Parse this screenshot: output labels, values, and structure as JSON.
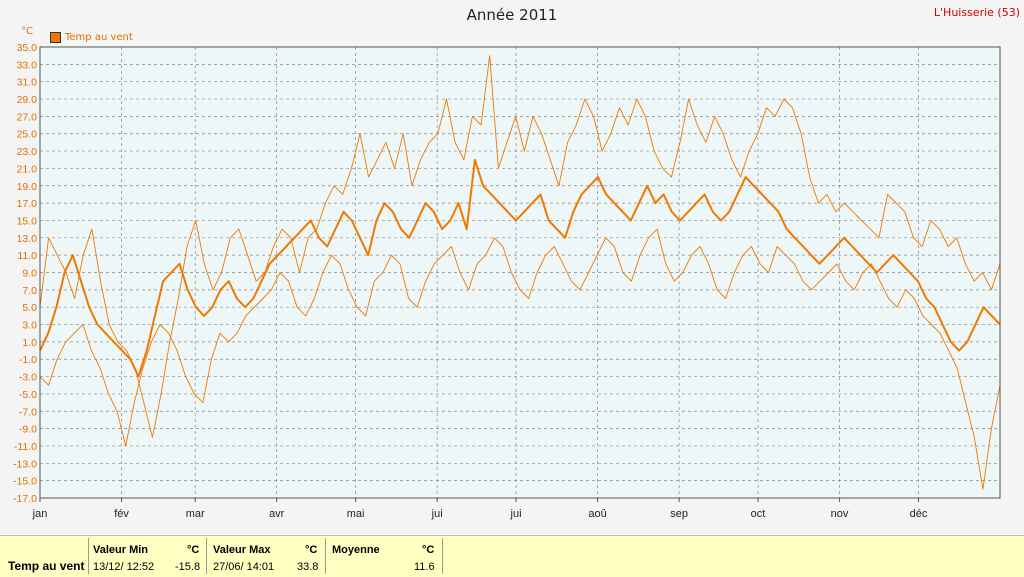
{
  "header": {
    "title": "Année 2011",
    "location": "L'Huisserie (53)",
    "unit": "°C",
    "legend_label": "Temp au vent"
  },
  "colors": {
    "series": "#f07800",
    "plot_bg": "#eef7f7",
    "grid": "#888888",
    "axis_label": "#e07000",
    "location": "#d00000",
    "summary_bg": "#ffffc2"
  },
  "summary": {
    "row_label": "Temp au vent",
    "min": {
      "label": "Valeur Min",
      "unit": "°C",
      "date": "13/12/ 12:52",
      "value": "-15.8"
    },
    "max": {
      "label": "Valeur Max",
      "unit": "°C",
      "date": "27/06/ 14:01",
      "value": "33.8"
    },
    "avg": {
      "label": "Moyenne",
      "unit": "°C",
      "value": "11.6"
    }
  },
  "chart_data": {
    "type": "line",
    "title": "Année 2011",
    "ylabel": "°C",
    "ylim": [
      -17,
      35
    ],
    "yticks": [
      "35.0",
      "33.0",
      "31.0",
      "29.0",
      "27.0",
      "25.0",
      "23.0",
      "21.0",
      "19.0",
      "17.0",
      "15.0",
      "13.0",
      "11.0",
      "9.0",
      "7.0",
      "5.0",
      "3.0",
      "1.0",
      "-1.0",
      "-3.0",
      "-5.0",
      "-7.0",
      "-9.0",
      "-11.0",
      "-13.0",
      "-15.0",
      "-17.0"
    ],
    "months": [
      "jan",
      "fév",
      "mar",
      "avr",
      "mai",
      "jui",
      "jui",
      "aoû",
      "sep",
      "oct",
      "nov",
      "déc"
    ],
    "month_days": [
      31,
      28,
      31,
      30,
      31,
      30,
      31,
      31,
      30,
      31,
      30,
      31
    ],
    "grid": true,
    "legend_position": "top-left",
    "series": [
      {
        "name": "Temp au vent",
        "role": "max",
        "values": [
          5,
          13,
          11,
          9,
          6,
          11,
          14,
          8,
          3,
          1,
          0,
          -2,
          -6,
          -10,
          -5,
          1,
          6,
          12,
          15,
          10,
          7,
          9,
          13,
          14,
          11,
          8,
          9,
          12,
          14,
          13,
          9,
          13,
          14,
          17,
          19,
          18,
          21,
          25,
          20,
          22,
          24,
          21,
          25,
          19,
          22,
          24,
          25,
          29,
          24,
          22,
          27,
          26,
          34,
          21,
          24,
          27,
          23,
          27,
          25,
          22,
          19,
          24,
          26,
          29,
          27,
          23,
          25,
          28,
          26,
          29,
          27,
          23,
          21,
          20,
          24,
          29,
          26,
          24,
          27,
          25,
          22,
          20,
          23,
          25,
          28,
          27,
          29,
          28,
          25,
          20,
          17,
          18,
          16,
          17,
          16,
          15,
          14,
          13,
          18,
          17,
          16,
          13,
          12,
          15,
          14,
          12,
          13,
          10,
          8,
          9,
          7,
          10
        ]
      },
      {
        "name": "Temp au vent",
        "role": "mean",
        "values": [
          0,
          2,
          5,
          9,
          11,
          8,
          5,
          3,
          2,
          1,
          0,
          -1,
          -3,
          0,
          4,
          8,
          9,
          10,
          7,
          5,
          4,
          5,
          7,
          8,
          6,
          5,
          6,
          8,
          10,
          11,
          12,
          13,
          14,
          15,
          13,
          12,
          14,
          16,
          15,
          13,
          11,
          15,
          17,
          16,
          14,
          13,
          15,
          17,
          16,
          14,
          15,
          17,
          14,
          22,
          19,
          18,
          17,
          16,
          15,
          16,
          17,
          18,
          15,
          14,
          13,
          16,
          18,
          19,
          20,
          18,
          17,
          16,
          15,
          17,
          19,
          17,
          18,
          16,
          15,
          16,
          17,
          18,
          16,
          15,
          16,
          18,
          20,
          19,
          18,
          17,
          16,
          14,
          13,
          12,
          11,
          10,
          11,
          12,
          13,
          12,
          11,
          10,
          9,
          10,
          11,
          10,
          9,
          8,
          6,
          5,
          3,
          1,
          0,
          1,
          3,
          5,
          4,
          3
        ]
      },
      {
        "name": "Temp au vent",
        "role": "min",
        "values": [
          -3,
          -4,
          -1,
          1,
          2,
          3,
          0,
          -2,
          -5,
          -7,
          -11,
          -6,
          -2,
          1,
          3,
          2,
          0,
          -3,
          -5,
          -6,
          -1,
          2,
          1,
          2,
          4,
          5,
          6,
          7,
          9,
          8,
          5,
          4,
          6,
          9,
          11,
          10,
          7,
          5,
          4,
          8,
          9,
          11,
          10,
          6,
          5,
          8,
          10,
          11,
          12,
          9,
          7,
          10,
          11,
          13,
          12,
          9,
          7,
          6,
          9,
          11,
          12,
          10,
          8,
          7,
          9,
          11,
          13,
          12,
          9,
          8,
          11,
          13,
          14,
          10,
          8,
          9,
          11,
          12,
          10,
          7,
          6,
          9,
          11,
          12,
          10,
          9,
          12,
          11,
          10,
          8,
          7,
          8,
          9,
          10,
          8,
          7,
          9,
          10,
          8,
          6,
          5,
          7,
          6,
          4,
          3,
          2,
          0,
          -2,
          -6,
          -10,
          -16,
          -9,
          -4
        ]
      }
    ]
  }
}
